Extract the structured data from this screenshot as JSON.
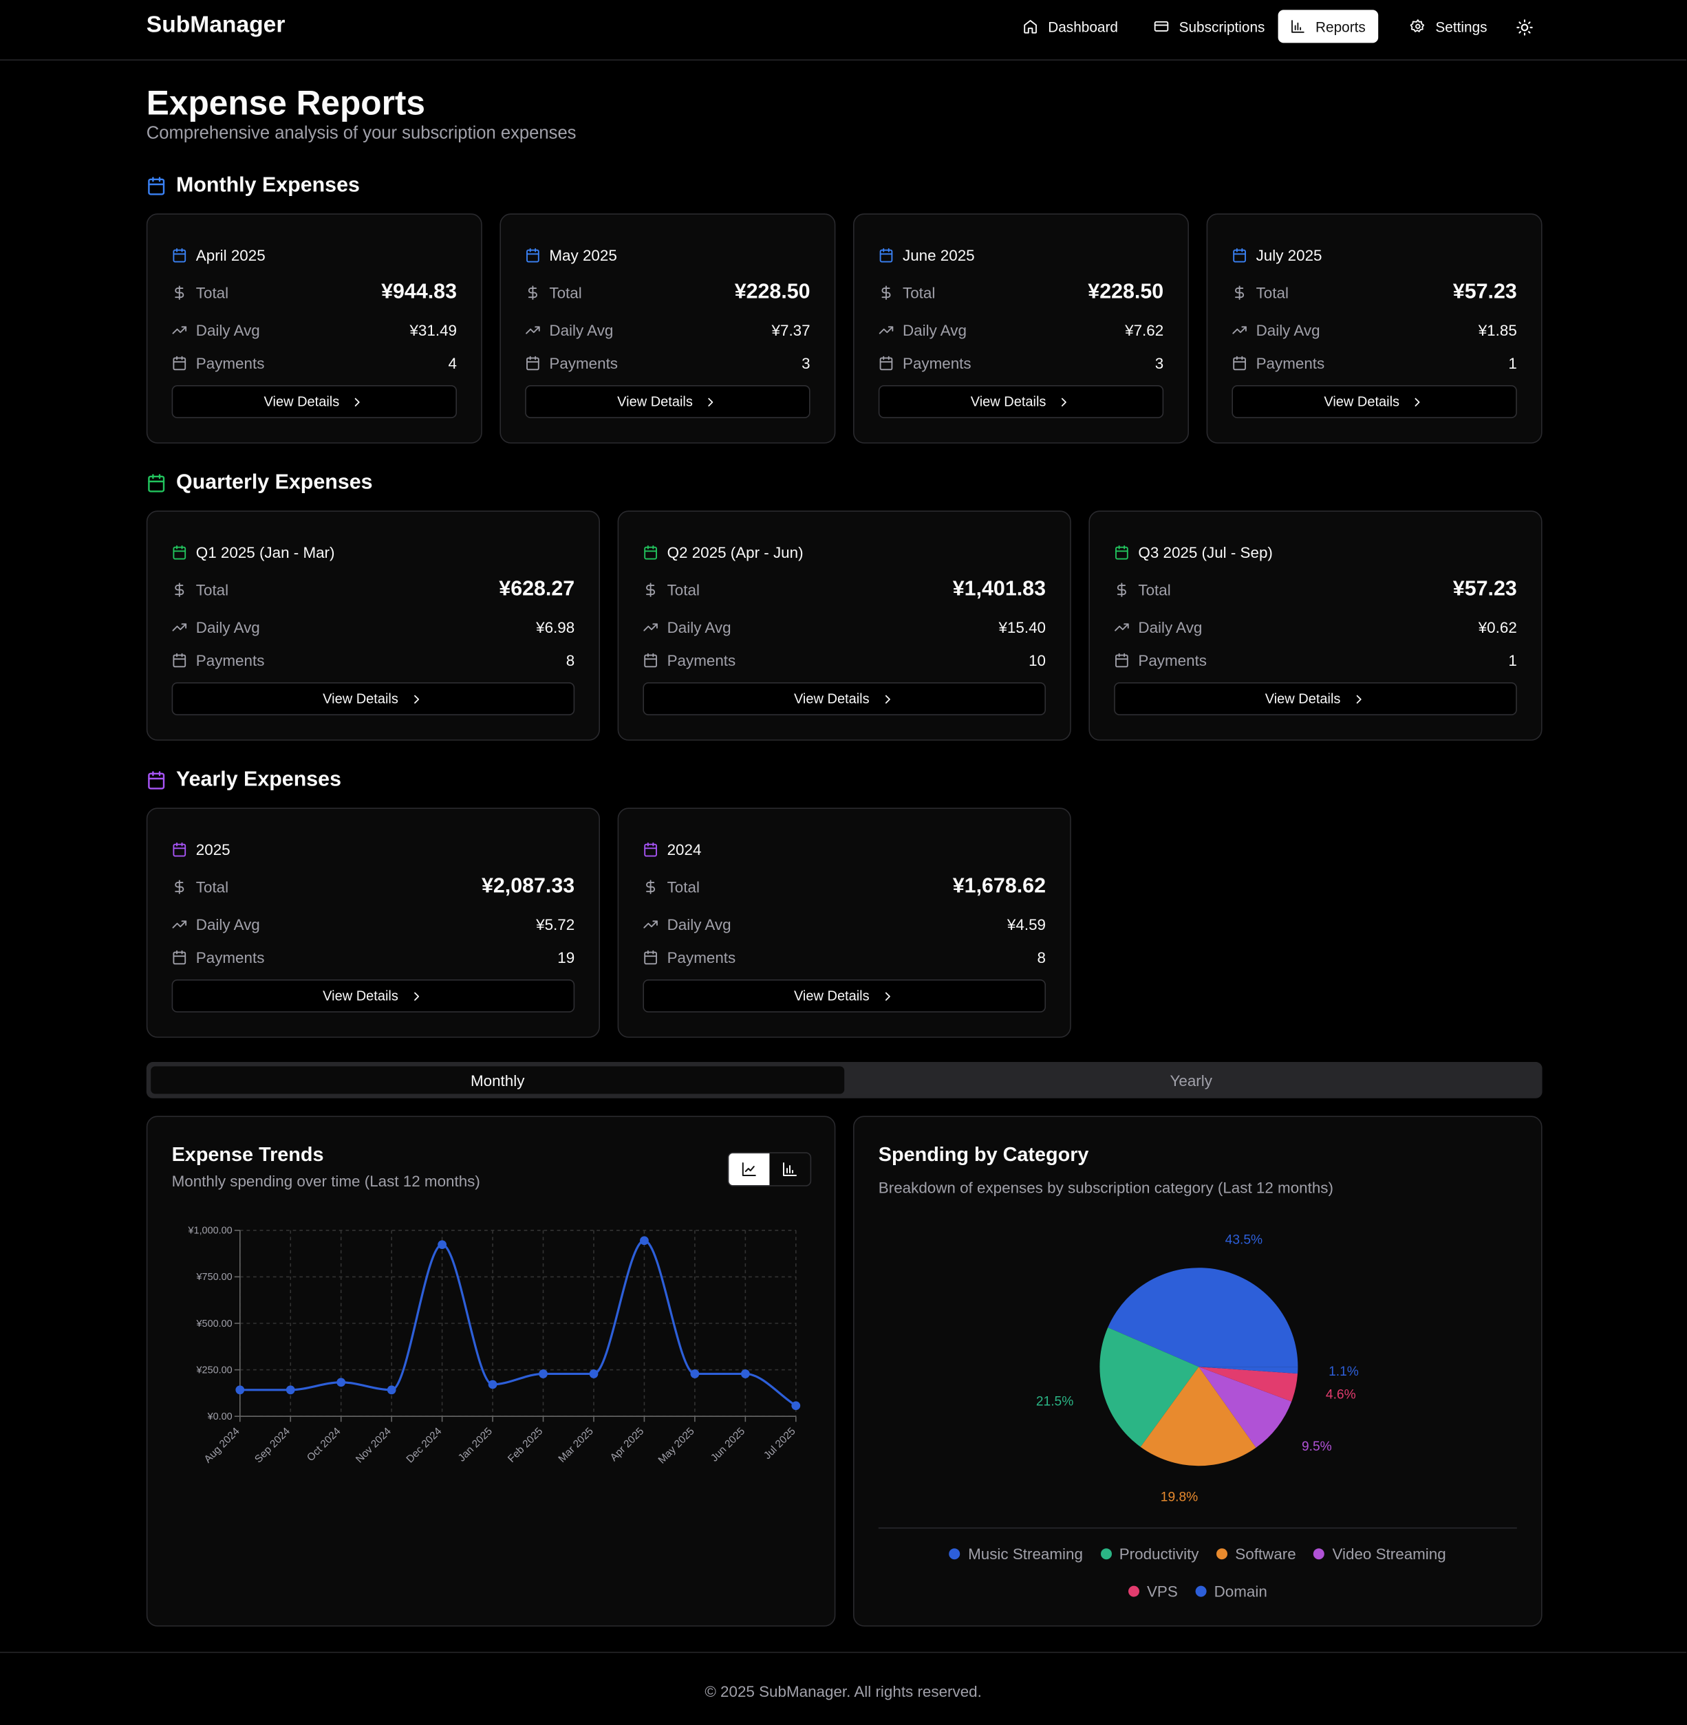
{
  "nav": {
    "brand": "SubManager",
    "items": [
      "Dashboard",
      "Subscriptions",
      "Reports",
      "Settings"
    ],
    "active_index": 2
  },
  "header": {
    "title": "Expense Reports",
    "subtitle": "Comprehensive analysis of your subscription expenses"
  },
  "labels": {
    "total": "Total",
    "daily_avg": "Daily Avg",
    "payments": "Payments",
    "view": "View Details"
  },
  "sections": [
    {
      "title": "Monthly Expenses",
      "color": "#3b82f6",
      "cards": [
        {
          "period": "April 2025",
          "total": "¥944.83",
          "daily_avg": "¥31.49",
          "payments": 4
        },
        {
          "period": "May 2025",
          "total": "¥228.50",
          "daily_avg": "¥7.37",
          "payments": 3
        },
        {
          "period": "June 2025",
          "total": "¥228.50",
          "daily_avg": "¥7.62",
          "payments": 3
        },
        {
          "period": "July 2025",
          "total": "¥57.23",
          "daily_avg": "¥1.85",
          "payments": 1
        }
      ]
    },
    {
      "title": "Quarterly Expenses",
      "color": "#22c55e",
      "cards": [
        {
          "period": "Q1 2025 (Jan - Mar)",
          "total": "¥628.27",
          "daily_avg": "¥6.98",
          "payments": 8
        },
        {
          "period": "Q2 2025 (Apr - Jun)",
          "total": "¥1,401.83",
          "daily_avg": "¥15.40",
          "payments": 10
        },
        {
          "period": "Q3 2025 (Jul - Sep)",
          "total": "¥57.23",
          "daily_avg": "¥0.62",
          "payments": 1
        }
      ]
    },
    {
      "title": "Yearly Expenses",
      "color": "#a855f7",
      "cards": [
        {
          "period": "2025",
          "total": "¥2,087.33",
          "daily_avg": "¥5.72",
          "payments": 19
        },
        {
          "period": "2024",
          "total": "¥1,678.62",
          "daily_avg": "¥4.59",
          "payments": 8
        }
      ]
    }
  ],
  "tabs": {
    "items": [
      "Monthly",
      "Yearly"
    ],
    "active_index": 0
  },
  "chart_data": [
    {
      "type": "line",
      "title": "Expense Trends",
      "subtitle": "Monthly spending over time (Last 12 months)",
      "categories": [
        "Aug 2024",
        "Sep 2024",
        "Oct 2024",
        "Nov 2024",
        "Dec 2024",
        "Jan 2025",
        "Feb 2025",
        "Mar 2025",
        "Apr 2025",
        "May 2025",
        "Jun 2025",
        "Jul 2025"
      ],
      "values": [
        142,
        142,
        183,
        142,
        923,
        171.27,
        228.5,
        228.5,
        944.83,
        228.5,
        228.5,
        57.23
      ],
      "color": "#2d5fd9",
      "ylim": [
        0,
        1000
      ],
      "yticks": [
        {
          "value": 0,
          "label": "¥0.00"
        },
        {
          "value": 250,
          "label": "¥250.00"
        },
        {
          "value": 500,
          "label": "¥500.00"
        },
        {
          "value": 750,
          "label": "¥750.00"
        },
        {
          "value": 1000,
          "label": "¥1,000.00"
        }
      ],
      "grid": true
    },
    {
      "type": "pie",
      "title": "Spending by Category",
      "subtitle": "Breakdown of expenses by subscription category (Last 12 months)",
      "categories": [
        "Music Streaming",
        "Productivity",
        "Software",
        "Video Streaming",
        "VPS",
        "Domain"
      ],
      "values": [
        43.5,
        21.5,
        19.8,
        9.5,
        4.6,
        1.1
      ],
      "value_labels": [
        "43.5%",
        "21.5%",
        "19.8%",
        "9.5%",
        "4.6%",
        "1.1%"
      ],
      "colors": [
        "#2d5fd9",
        "#2bb585",
        "#e88a2e",
        "#b052d6",
        "#e23c6e",
        "#2d5fd9"
      ],
      "legend": "bottom"
    }
  ],
  "footer": "© 2025 SubManager. All rights reserved."
}
